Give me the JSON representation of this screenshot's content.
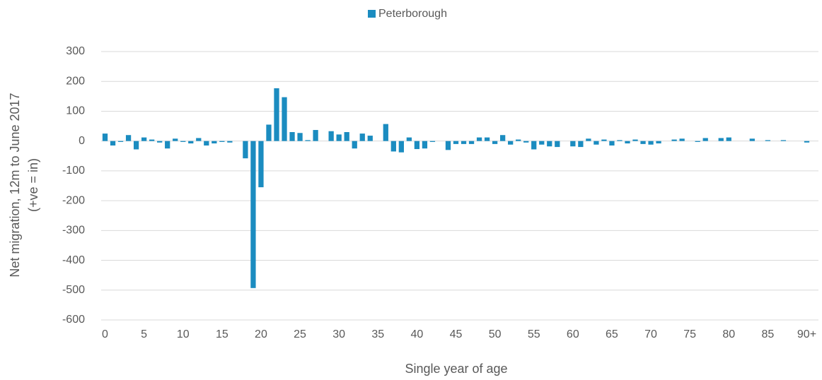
{
  "chart_data": {
    "type": "bar",
    "xlabel": "Single year of age",
    "ylabel": [
      "Net migration, 12m to June 2017",
      "(+ve = in)"
    ],
    "categories": [
      "0",
      null,
      null,
      null,
      null,
      "5",
      null,
      null,
      null,
      null,
      "10",
      null,
      null,
      null,
      null,
      "15",
      null,
      null,
      null,
      null,
      "20",
      null,
      null,
      null,
      null,
      "25",
      null,
      null,
      null,
      null,
      "30",
      null,
      null,
      null,
      null,
      "35",
      null,
      null,
      null,
      null,
      "40",
      null,
      null,
      null,
      null,
      "45",
      null,
      null,
      null,
      null,
      "50",
      null,
      null,
      null,
      null,
      "55",
      null,
      null,
      null,
      null,
      "60",
      null,
      null,
      null,
      null,
      "65",
      null,
      null,
      null,
      null,
      "70",
      null,
      null,
      null,
      null,
      "75",
      null,
      null,
      null,
      null,
      "80",
      null,
      null,
      null,
      null,
      "85",
      null,
      null,
      null,
      null,
      "90+"
    ],
    "series": [
      {
        "name": "Peterborough",
        "color": "#1b8cc0",
        "values": [
          25,
          -15,
          -3,
          20,
          -28,
          12,
          5,
          -5,
          -25,
          8,
          -3,
          -8,
          10,
          -15,
          -8,
          -3,
          -5,
          0,
          -58,
          -493,
          -155,
          55,
          177,
          147,
          30,
          27,
          3,
          37,
          0,
          33,
          22,
          30,
          -25,
          25,
          18,
          0,
          57,
          -35,
          -38,
          12,
          -27,
          -25,
          -3,
          0,
          -30,
          -10,
          -10,
          -10,
          12,
          12,
          -10,
          20,
          -12,
          5,
          -5,
          -28,
          -12,
          -18,
          -20,
          0,
          -18,
          -20,
          8,
          -12,
          5,
          -15,
          3,
          -8,
          5,
          -10,
          -12,
          -8,
          0,
          5,
          8,
          0,
          -3,
          10,
          0,
          10,
          12,
          0,
          0,
          8,
          0,
          3,
          0,
          3,
          0,
          0,
          -5
        ]
      }
    ],
    "ylim": [
      -600,
      300
    ],
    "yticks": [
      -600,
      -500,
      -400,
      -300,
      -200,
      -100,
      0,
      100,
      200,
      300
    ],
    "grid": true,
    "legend": "top"
  }
}
